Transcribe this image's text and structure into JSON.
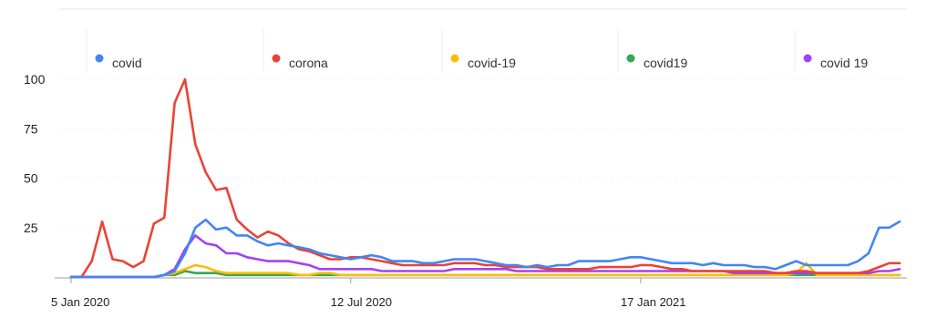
{
  "chart_data": {
    "type": "line",
    "x_labels": [
      "5 Jan 2020",
      "12 Jul 2020",
      "17 Jan 2021"
    ],
    "x_label_indices": [
      0,
      27,
      55
    ],
    "ylim": [
      0,
      100
    ],
    "yticks": [
      25,
      50,
      75,
      100
    ],
    "grid": true,
    "legend_position": "top",
    "series": [
      {
        "name": "covid",
        "color": "#4285f4",
        "values": [
          0,
          0,
          0,
          0,
          0,
          0,
          0,
          0,
          0,
          1,
          3,
          12,
          25,
          29,
          24,
          25,
          21,
          21,
          18,
          16,
          17,
          16,
          15,
          14,
          12,
          11,
          10,
          9,
          10,
          11,
          10,
          8,
          8,
          8,
          7,
          7,
          8,
          9,
          9,
          9,
          8,
          7,
          6,
          6,
          5,
          6,
          5,
          6,
          6,
          8,
          8,
          8,
          8,
          9,
          10,
          10,
          9,
          8,
          7,
          7,
          7,
          6,
          7,
          6,
          6,
          6,
          5,
          5,
          4,
          6,
          8,
          6,
          6,
          6,
          6,
          6,
          8,
          12,
          25,
          25,
          28
        ]
      },
      {
        "name": "corona",
        "color": "#ea4335",
        "values": [
          0,
          0,
          8,
          28,
          9,
          8,
          5,
          8,
          27,
          30,
          88,
          100,
          67,
          53,
          44,
          45,
          29,
          24,
          20,
          23,
          21,
          17,
          14,
          13,
          11,
          9,
          9,
          10,
          10,
          9,
          8,
          7,
          6,
          6,
          6,
          6,
          6,
          7,
          7,
          7,
          6,
          6,
          5,
          5,
          5,
          5,
          4,
          4,
          4,
          4,
          4,
          5,
          5,
          5,
          5,
          6,
          6,
          5,
          4,
          4,
          3,
          3,
          3,
          3,
          3,
          3,
          3,
          3,
          2,
          2,
          3,
          3,
          2,
          2,
          2,
          2,
          2,
          3,
          5,
          7,
          7
        ]
      },
      {
        "name": "covid-19",
        "color": "#fbbc04",
        "values": [
          0,
          0,
          0,
          0,
          0,
          0,
          0,
          0,
          0,
          1,
          2,
          4,
          6,
          5,
          3,
          2,
          2,
          2,
          2,
          2,
          2,
          2,
          1,
          1,
          2,
          2,
          1,
          1,
          1,
          1,
          1,
          1,
          1,
          1,
          1,
          1,
          1,
          1,
          1,
          1,
          1,
          1,
          1,
          1,
          1,
          1,
          1,
          1,
          1,
          1,
          1,
          1,
          1,
          1,
          1,
          1,
          1,
          1,
          1,
          1,
          1,
          1,
          1,
          1,
          1,
          1,
          1,
          1,
          1,
          1,
          2,
          7,
          1,
          1,
          1,
          1,
          1,
          1,
          1,
          1,
          1
        ]
      },
      {
        "name": "covid19",
        "color": "#34a853",
        "values": [
          0,
          0,
          0,
          0,
          0,
          0,
          0,
          0,
          0,
          1,
          1,
          3,
          2,
          2,
          2,
          1,
          1,
          1,
          1,
          1,
          1,
          1,
          1,
          1,
          1,
          1,
          1,
          1,
          1,
          1,
          1,
          1,
          1,
          1,
          1,
          1,
          1,
          1,
          1,
          1,
          1,
          1,
          1,
          1,
          1,
          1,
          1,
          1,
          1,
          1,
          1,
          1,
          1,
          1,
          1,
          1,
          1,
          1,
          1,
          1,
          1,
          1,
          1,
          1,
          1,
          1,
          1,
          1,
          1,
          1,
          1,
          1,
          1,
          1,
          1,
          1,
          1,
          1,
          1,
          1,
          1
        ]
      },
      {
        "name": "covid 19",
        "color": "#a142f4",
        "values": [
          0,
          0,
          0,
          0,
          0,
          0,
          0,
          0,
          0,
          1,
          4,
          14,
          21,
          17,
          16,
          12,
          12,
          10,
          9,
          8,
          8,
          8,
          7,
          6,
          4,
          4,
          4,
          4,
          4,
          4,
          3,
          3,
          3,
          3,
          3,
          3,
          3,
          4,
          4,
          4,
          4,
          4,
          4,
          3,
          3,
          3,
          3,
          3,
          3,
          3,
          3,
          3,
          3,
          3,
          3,
          3,
          3,
          3,
          3,
          3,
          3,
          3,
          3,
          3,
          2,
          2,
          2,
          2,
          2,
          2,
          2,
          2,
          2,
          2,
          2,
          2,
          2,
          2,
          3,
          3,
          4
        ]
      }
    ]
  }
}
